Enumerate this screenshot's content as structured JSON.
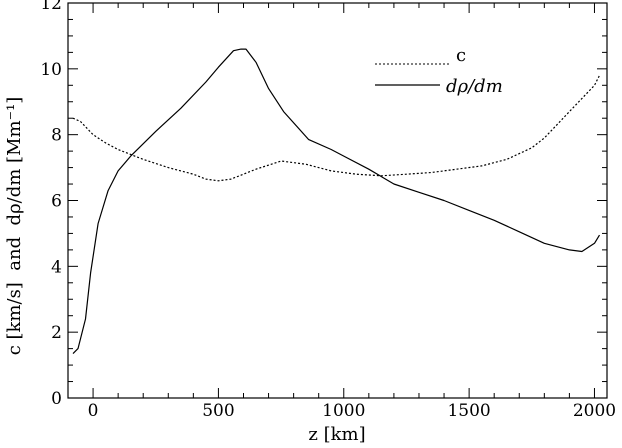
{
  "chart_data": {
    "type": "line",
    "title": "",
    "xlabel": "z [km]",
    "ylabel": "c [km/s]  and  dρ/dm [Mm⁻¹]",
    "xlim": [
      -100,
      2050
    ],
    "ylim": [
      0,
      12
    ],
    "xticks": [
      0,
      500,
      1000,
      1500,
      2000
    ],
    "yticks": [
      0,
      2,
      4,
      6,
      8,
      10,
      12
    ],
    "grid": false,
    "legend_position": "top-right",
    "series": [
      {
        "name": "c",
        "style": "dotted",
        "color": "#000000",
        "points": [
          [
            -80,
            8.5
          ],
          [
            -50,
            8.4
          ],
          [
            0,
            8.0
          ],
          [
            50,
            7.75
          ],
          [
            100,
            7.55
          ],
          [
            200,
            7.25
          ],
          [
            300,
            7.0
          ],
          [
            400,
            6.8
          ],
          [
            450,
            6.65
          ],
          [
            500,
            6.6
          ],
          [
            550,
            6.65
          ],
          [
            650,
            6.95
          ],
          [
            750,
            7.2
          ],
          [
            850,
            7.1
          ],
          [
            950,
            6.9
          ],
          [
            1050,
            6.8
          ],
          [
            1150,
            6.75
          ],
          [
            1250,
            6.8
          ],
          [
            1350,
            6.85
          ],
          [
            1450,
            6.95
          ],
          [
            1550,
            7.05
          ],
          [
            1650,
            7.25
          ],
          [
            1750,
            7.6
          ],
          [
            1800,
            7.9
          ],
          [
            1850,
            8.3
          ],
          [
            1900,
            8.7
          ],
          [
            1950,
            9.1
          ],
          [
            2000,
            9.5
          ],
          [
            2020,
            9.8
          ]
        ]
      },
      {
        "name": "dρ/dm",
        "style": "solid",
        "color": "#000000",
        "points": [
          [
            -80,
            1.35
          ],
          [
            -60,
            1.5
          ],
          [
            -30,
            2.4
          ],
          [
            -10,
            3.8
          ],
          [
            20,
            5.3
          ],
          [
            60,
            6.3
          ],
          [
            100,
            6.9
          ],
          [
            150,
            7.35
          ],
          [
            250,
            8.1
          ],
          [
            350,
            8.8
          ],
          [
            450,
            9.6
          ],
          [
            500,
            10.05
          ],
          [
            560,
            10.55
          ],
          [
            590,
            10.6
          ],
          [
            610,
            10.6
          ],
          [
            650,
            10.2
          ],
          [
            700,
            9.4
          ],
          [
            760,
            8.7
          ],
          [
            860,
            7.85
          ],
          [
            950,
            7.55
          ],
          [
            1000,
            7.35
          ],
          [
            1100,
            6.95
          ],
          [
            1200,
            6.5
          ],
          [
            1300,
            6.25
          ],
          [
            1400,
            6.0
          ],
          [
            1500,
            5.7
          ],
          [
            1600,
            5.4
          ],
          [
            1700,
            5.05
          ],
          [
            1800,
            4.7
          ],
          [
            1900,
            4.5
          ],
          [
            1950,
            4.45
          ],
          [
            2000,
            4.7
          ],
          [
            2020,
            4.95
          ]
        ]
      }
    ]
  }
}
